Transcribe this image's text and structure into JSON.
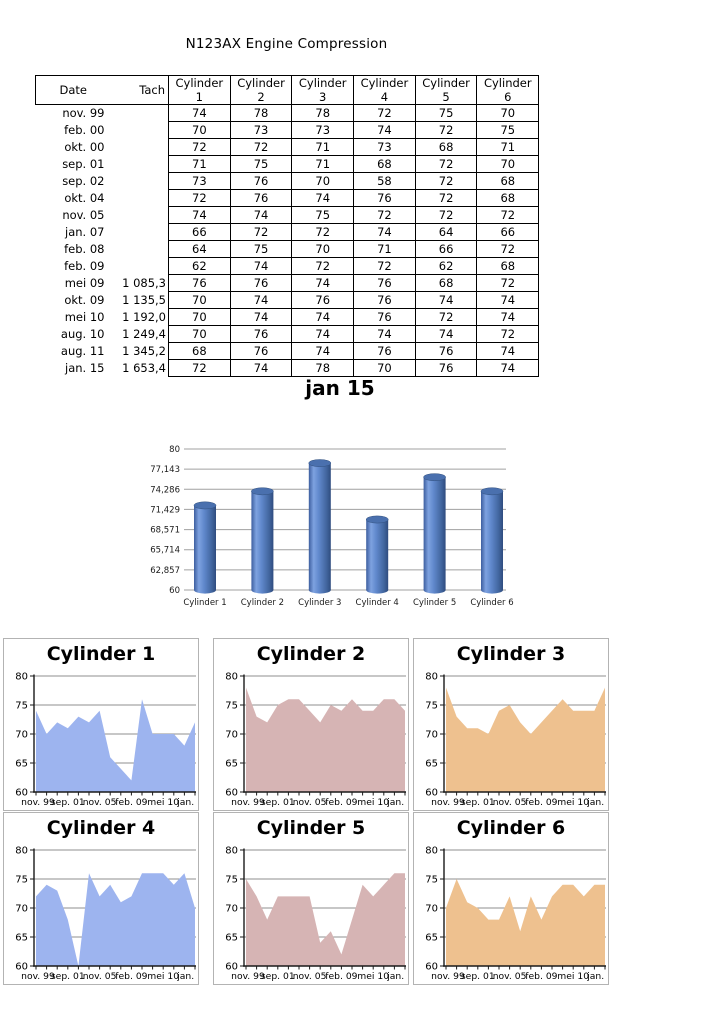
{
  "page": {
    "title": "N123AX Engine Compression"
  },
  "table": {
    "col_headers": {
      "date": "Date",
      "tach": "Tach",
      "cylinders": [
        "Cylinder 1",
        "Cylinder 2",
        "Cylinder 3",
        "Cylinder 4",
        "Cylinder 5",
        "Cylinder 6"
      ]
    },
    "rows": [
      {
        "date": "nov. 99",
        "tach": "",
        "values": [
          74,
          78,
          78,
          72,
          75,
          70
        ]
      },
      {
        "date": "feb. 00",
        "tach": "",
        "values": [
          70,
          73,
          73,
          74,
          72,
          75
        ]
      },
      {
        "date": "okt. 00",
        "tach": "",
        "values": [
          72,
          72,
          71,
          73,
          68,
          71
        ]
      },
      {
        "date": "sep. 01",
        "tach": "",
        "values": [
          71,
          75,
          71,
          68,
          72,
          70
        ]
      },
      {
        "date": "sep. 02",
        "tach": "",
        "values": [
          73,
          76,
          70,
          58,
          72,
          68
        ]
      },
      {
        "date": "okt. 04",
        "tach": "",
        "values": [
          72,
          76,
          74,
          76,
          72,
          68
        ]
      },
      {
        "date": "nov. 05",
        "tach": "",
        "values": [
          74,
          74,
          75,
          72,
          72,
          72
        ]
      },
      {
        "date": "jan. 07",
        "tach": "",
        "values": [
          66,
          72,
          72,
          74,
          64,
          66
        ]
      },
      {
        "date": "feb. 08",
        "tach": "",
        "values": [
          64,
          75,
          70,
          71,
          66,
          72
        ]
      },
      {
        "date": "feb. 09",
        "tach": "",
        "values": [
          62,
          74,
          72,
          72,
          62,
          68
        ]
      },
      {
        "date": "mei 09",
        "tach": "1 085,3",
        "values": [
          76,
          76,
          74,
          76,
          68,
          72
        ]
      },
      {
        "date": "okt. 09",
        "tach": "1 135,5",
        "values": [
          70,
          74,
          76,
          76,
          74,
          74
        ]
      },
      {
        "date": "mei 10",
        "tach": "1 192,0",
        "values": [
          70,
          74,
          74,
          76,
          72,
          74
        ]
      },
      {
        "date": "aug. 10",
        "tach": "1 249,4",
        "values": [
          70,
          76,
          74,
          74,
          74,
          72
        ]
      },
      {
        "date": "aug. 11",
        "tach": "1 345,2",
        "values": [
          68,
          76,
          74,
          76,
          76,
          74
        ]
      },
      {
        "date": "jan. 15",
        "tach": "1 653,4",
        "values": [
          72,
          74,
          78,
          70,
          76,
          74
        ]
      }
    ]
  },
  "chart_data": [
    {
      "type": "bar",
      "title": "jan 15",
      "categories": [
        "Cylinder 1",
        "Cylinder 2",
        "Cylinder 3",
        "Cylinder 4",
        "Cylinder 5",
        "Cylinder 6"
      ],
      "values": [
        72,
        74,
        78,
        70,
        76,
        74
      ],
      "ylim": [
        60,
        80
      ],
      "ytick_labels": [
        "80",
        "77,143",
        "74,286",
        "71,429",
        "68,571",
        "65,714",
        "62,857",
        "60"
      ],
      "bar_color": "#4f77b7",
      "grid": true,
      "legend": "none",
      "xlabel": "",
      "ylabel": ""
    },
    {
      "type": "area",
      "title": "Cylinder 1",
      "color": "#9db4ef",
      "x": [
        "nov. 99",
        "feb. 00",
        "okt. 00",
        "sep. 01",
        "sep. 02",
        "okt. 04",
        "nov. 05",
        "jan. 07",
        "feb. 08",
        "feb. 09",
        "mei 09",
        "okt. 09",
        "mei 10",
        "aug. 10",
        "aug. 11",
        "jan. 15"
      ],
      "values": [
        74,
        70,
        72,
        71,
        73,
        72,
        74,
        66,
        64,
        62,
        76,
        70,
        70,
        70,
        68,
        72
      ],
      "ylim": [
        60,
        80
      ],
      "yticks": [
        80,
        75,
        70,
        65,
        60
      ],
      "xtick_labels": [
        "nov. 99",
        "sep. 01",
        "nov. 05",
        "feb. 09",
        "mei 10",
        "jan. 15"
      ],
      "grid": true
    },
    {
      "type": "area",
      "title": "Cylinder 2",
      "color": "#d6b4b4",
      "x": [
        "nov. 99",
        "feb. 00",
        "okt. 00",
        "sep. 01",
        "sep. 02",
        "okt. 04",
        "nov. 05",
        "jan. 07",
        "feb. 08",
        "feb. 09",
        "mei 09",
        "okt. 09",
        "mei 10",
        "aug. 10",
        "aug. 11",
        "jan. 15"
      ],
      "values": [
        78,
        73,
        72,
        75,
        76,
        76,
        74,
        72,
        75,
        74,
        76,
        74,
        74,
        76,
        76,
        74
      ],
      "ylim": [
        60,
        80
      ],
      "yticks": [
        80,
        75,
        70,
        65,
        60
      ],
      "xtick_labels": [
        "nov. 99",
        "sep. 01",
        "nov. 05",
        "feb. 09",
        "mei 10",
        "jan. 15"
      ],
      "grid": true
    },
    {
      "type": "area",
      "title": "Cylinder 3",
      "color": "#eec18f",
      "x": [
        "nov. 99",
        "feb. 00",
        "okt. 00",
        "sep. 01",
        "sep. 02",
        "okt. 04",
        "nov. 05",
        "jan. 07",
        "feb. 08",
        "feb. 09",
        "mei 09",
        "okt. 09",
        "mei 10",
        "aug. 10",
        "aug. 11",
        "jan. 15"
      ],
      "values": [
        78,
        73,
        71,
        71,
        70,
        74,
        75,
        72,
        70,
        72,
        74,
        76,
        74,
        74,
        74,
        78
      ],
      "ylim": [
        60,
        80
      ],
      "yticks": [
        80,
        75,
        70,
        65,
        60
      ],
      "xtick_labels": [
        "nov. 99",
        "sep. 01",
        "nov. 05",
        "feb. 09",
        "mei 10",
        "jan. 15"
      ],
      "grid": true
    },
    {
      "type": "area",
      "title": "Cylinder 4",
      "color": "#9db4ef",
      "x": [
        "nov. 99",
        "feb. 00",
        "okt. 00",
        "sep. 01",
        "sep. 02",
        "okt. 04",
        "nov. 05",
        "jan. 07",
        "feb. 08",
        "feb. 09",
        "mei 09",
        "okt. 09",
        "mei 10",
        "aug. 10",
        "aug. 11",
        "jan. 15"
      ],
      "values": [
        72,
        74,
        73,
        68,
        58,
        76,
        72,
        74,
        71,
        72,
        76,
        76,
        76,
        74,
        76,
        70
      ],
      "ylim": [
        60,
        80
      ],
      "yticks": [
        80,
        75,
        70,
        65,
        60
      ],
      "xtick_labels": [
        "nov. 99",
        "sep. 01",
        "nov. 05",
        "feb. 09",
        "mei 10",
        "jan. 15"
      ],
      "grid": true
    },
    {
      "type": "area",
      "title": "Cylinder 5",
      "color": "#d6b4b4",
      "x": [
        "nov. 99",
        "feb. 00",
        "okt. 00",
        "sep. 01",
        "sep. 02",
        "okt. 04",
        "nov. 05",
        "jan. 07",
        "feb. 08",
        "feb. 09",
        "mei 09",
        "okt. 09",
        "mei 10",
        "aug. 10",
        "aug. 11",
        "jan. 15"
      ],
      "values": [
        75,
        72,
        68,
        72,
        72,
        72,
        72,
        64,
        66,
        62,
        68,
        74,
        72,
        74,
        76,
        76
      ],
      "ylim": [
        60,
        80
      ],
      "yticks": [
        80,
        75,
        70,
        65,
        60
      ],
      "xtick_labels": [
        "nov. 99",
        "sep. 01",
        "nov. 05",
        "feb. 09",
        "mei 10",
        "jan. 15"
      ],
      "grid": true
    },
    {
      "type": "area",
      "title": "Cylinder 6",
      "color": "#eec18f",
      "x": [
        "nov. 99",
        "feb. 00",
        "okt. 00",
        "sep. 01",
        "sep. 02",
        "okt. 04",
        "nov. 05",
        "jan. 07",
        "feb. 08",
        "feb. 09",
        "mei 09",
        "okt. 09",
        "mei 10",
        "aug. 10",
        "aug. 11",
        "jan. 15"
      ],
      "values": [
        70,
        75,
        71,
        70,
        68,
        68,
        72,
        66,
        72,
        68,
        72,
        74,
        74,
        72,
        74,
        74
      ],
      "ylim": [
        60,
        80
      ],
      "yticks": [
        80,
        75,
        70,
        65,
        60
      ],
      "xtick_labels": [
        "nov. 99",
        "sep. 01",
        "nov. 05",
        "feb. 09",
        "mei 10",
        "jan. 15"
      ],
      "grid": true
    }
  ],
  "colors": {
    "area_blue": "#9db4ef",
    "area_rose": "#d6b4b4",
    "area_orange": "#eec18f",
    "bar_blue": "#4f77b7",
    "gridline": "#8f8f8f",
    "panel_border": "#b3b3b3"
  }
}
